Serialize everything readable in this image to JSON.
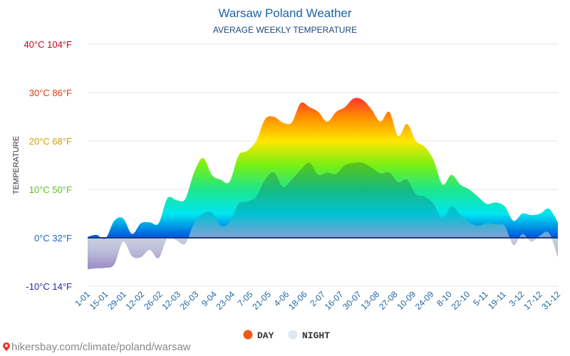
{
  "chart_data": {
    "type": "area",
    "title": "Warsaw Poland Weather",
    "subtitle": "AVERAGE WEEKLY TEMPERATURE",
    "ylabel": "TEMPERATURE",
    "ylim": [
      -10,
      40
    ],
    "yticks": [
      {
        "value": 40,
        "label": "40°C 104°F",
        "color": "#c8001e"
      },
      {
        "value": 30,
        "label": "30°C 86°F",
        "color": "#e03c0a"
      },
      {
        "value": 20,
        "label": "20°C 68°F",
        "color": "#d2a000"
      },
      {
        "value": 10,
        "label": "10°C 50°F",
        "color": "#5abe1e"
      },
      {
        "value": 0,
        "label": "0°C 32°F",
        "color": "#1e64c8"
      },
      {
        "value": -10,
        "label": "-10°C 14°F",
        "color": "#2828a0"
      }
    ],
    "x_labels": [
      "1-01",
      "15-01",
      "29-01",
      "12-02",
      "26-02",
      "12-03",
      "26-03",
      "9-04",
      "23-04",
      "7-05",
      "21-05",
      "4-06",
      "18-06",
      "2-07",
      "16-07",
      "30-07",
      "13-08",
      "27-08",
      "10-09",
      "24-09",
      "8-10",
      "22-10",
      "5-11",
      "19-11",
      "3-12",
      "17-12",
      "31-12"
    ],
    "series": [
      {
        "name": "DAY",
        "color": "#f05a14",
        "values": [
          0.2,
          0.6,
          -0.2,
          3.5,
          4.0,
          0.8,
          3.0,
          3.2,
          3.0,
          8.2,
          7.8,
          8.0,
          13.5,
          16.5,
          13.0,
          12.0,
          11.6,
          17.0,
          18.0,
          20.0,
          24.5,
          25.0,
          23.8,
          23.8,
          27.8,
          27.0,
          26.0,
          24.0,
          26.0,
          27.0,
          28.8,
          28.5,
          26.5,
          24.0,
          26.0,
          21.0,
          23.5,
          20.0,
          18.8,
          16.0,
          11.0,
          13.0,
          11.0,
          10.0,
          8.5,
          7.0,
          7.3,
          6.5,
          3.5,
          5.0,
          4.7,
          5.0,
          6.0,
          3.2
        ]
      },
      {
        "name": "NIGHT",
        "color": "#dfe8f2",
        "values": [
          -6.5,
          -6.3,
          -6.2,
          -5.5,
          -0.8,
          -3.8,
          -4.0,
          -2.5,
          -4.2,
          0.0,
          -0.5,
          -1.2,
          3.0,
          5.0,
          5.2,
          2.5,
          3.2,
          7.0,
          7.5,
          8.5,
          12.0,
          13.5,
          10.5,
          12.0,
          14.0,
          15.5,
          13.0,
          13.5,
          13.2,
          15.0,
          15.5,
          15.5,
          14.5,
          13.3,
          13.5,
          11.5,
          12.0,
          9.0,
          8.5,
          7.0,
          4.0,
          6.5,
          4.8,
          3.2,
          2.5,
          3.0,
          2.8,
          2.5,
          -1.5,
          0.8,
          -0.8,
          0.5,
          1.0,
          -4.0
        ]
      }
    ],
    "legend": [
      {
        "label": "DAY",
        "color": "#f05a14"
      },
      {
        "label": "NIGHT",
        "color": "#dfe8f2"
      }
    ]
  },
  "footer": {
    "url": "hikersbay.com/climate/poland/warsaw"
  }
}
